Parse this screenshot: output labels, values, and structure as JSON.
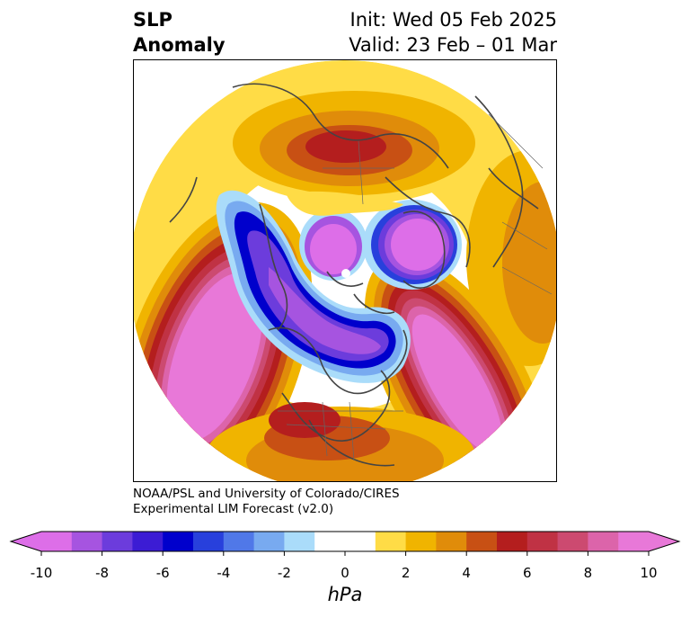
{
  "header": {
    "title_line1": "SLP",
    "title_line2": "Anomaly",
    "init": "Init: Wed 05 Feb 2025",
    "valid": "Valid: 23 Feb – 01 Mar"
  },
  "credit": {
    "line1": "NOAA/PSL and University of Colorado/CIRES",
    "line2": "Experimental LIM Forecast (v2.0)"
  },
  "colorbar": {
    "unit": "hPa",
    "ticks": [
      "-10",
      "-8",
      "-6",
      "-4",
      "-2",
      "0",
      "2",
      "4",
      "6",
      "8",
      "10"
    ],
    "colors": [
      "#dd6ee8",
      "#a654e0",
      "#6c3cdc",
      "#3c1cd4",
      "#0000cc",
      "#2840dc",
      "#5078e8",
      "#78aaf0",
      "#aadcfa",
      "#ffffff",
      "#ffffff",
      "#ffdc46",
      "#f0b400",
      "#e08c0a",
      "#c85014",
      "#b41e1e",
      "#c03244",
      "#cc4a70",
      "#dc64aa",
      "#e878d8"
    ],
    "under_color": "#dd6ee8",
    "over_color": "#e878d8"
  }
}
